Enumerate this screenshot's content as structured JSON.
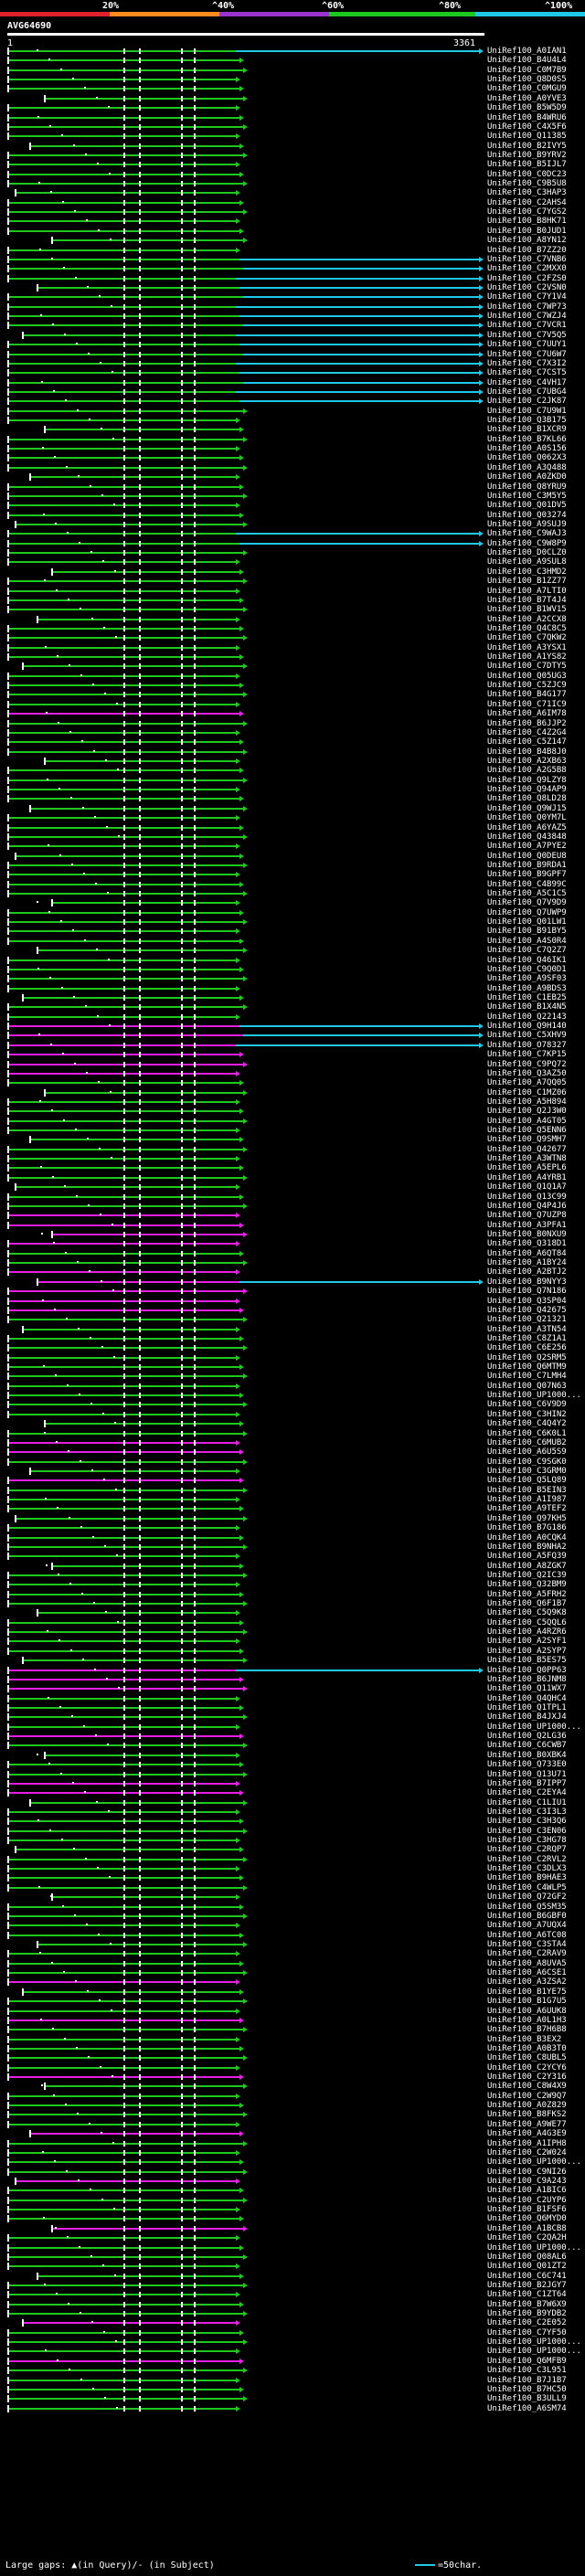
{
  "scale": {
    "labels": [
      "20%",
      "^40%",
      "^60%",
      "^80%",
      "^100%"
    ],
    "colors": [
      "#e0202a",
      "#ff8c1e",
      "#9a32cd",
      "#1ec81e",
      "#1ec8e6"
    ]
  },
  "query": {
    "name": "AVG64690",
    "start": "1",
    "end": "3361"
  },
  "hits": [
    "UniRef100_A0IAN1",
    "UniRef100_B4U4L4",
    "UniRef100_C0M7B9",
    "UniRef100_Q8D0S5",
    "UniRef100_C0MGU9",
    "UniRef100_A0YVE3",
    "UniRef100_B5W5D9",
    "UniRef100_B4WRU6",
    "UniRef100_C4X5F6",
    "UniRef100_Q11385",
    "UniRef100_B2IVY5",
    "UniRef100_B9YRV2",
    "UniRef100_B5IJL7",
    "UniRef100_C0DC23",
    "UniRef100_C9B5U8",
    "UniRef100_C3HAP3",
    "UniRef100_C2AHS4",
    "UniRef100_C7YGS2",
    "UniRef100_B8HK71",
    "UniRef100_B0JUD1",
    "UniRef100_A8YN12",
    "UniRef100_B7ZZ20",
    "UniRef100_C7VNB6",
    "UniRef100_C2MXX0",
    "UniRef100_C2FZS0",
    "UniRef100_C2VSN0",
    "UniRef100_C7Y1V4",
    "UniRef100_C7WP73",
    "UniRef100_C7WZJ4",
    "UniRef100_C7VCR1",
    "UniRef100_C7V5Q5",
    "UniRef100_C7UUY1",
    "UniRef100_C7U6W7",
    "UniRef100_C7X3I2",
    "UniRef100_C7CST5",
    "UniRef100_C4VH17",
    "UniRef100_C7UBG4",
    "UniRef100_C2JK87",
    "UniRef100_C7U9W1",
    "UniRef100_Q3B175",
    "UniRef100_B1XCR9",
    "UniRef100_B7KL66",
    "UniRef100_A0S156",
    "UniRef100_Q062X3",
    "UniRef100_A3Q488",
    "UniRef100_A0ZKD0",
    "UniRef100_Q8YRU9",
    "UniRef100_C3M5Y5",
    "UniRef100_Q01DV5",
    "UniRef100_Q03274",
    "UniRef100_A9SUJ9",
    "UniRef100_C9WAJ3",
    "UniRef100_C9W8P9",
    "UniRef100_D0CLZ0",
    "UniRef100_A9SUL8",
    "UniRef100_C3HMD2",
    "UniRef100_B1ZZ77",
    "UniRef100_A7LTI0",
    "UniRef100_B7T4J4",
    "UniRef100_B1WV15",
    "UniRef100_A2CCX8",
    "UniRef100_Q4C8C5",
    "UniRef100_C7QKW2",
    "UniRef100_A3YSX1",
    "UniRef100_A1YS82",
    "UniRef100_C7DTY5",
    "UniRef100_Q05UG3",
    "UniRef100_C5ZJC9",
    "UniRef100_B4G177",
    "UniRef100_C71IC9",
    "UniRef100_A6IM78",
    "UniRef100_B6JJP2",
    "UniRef100_C4Z2G4",
    "UniRef100_C5Z147",
    "UniRef100_B4B8J0",
    "UniRef100_A2XB63",
    "UniRef100_A2G5B8",
    "UniRef100_Q9LZY8",
    "UniRef100_Q94AP9",
    "UniRef100_Q8LD28",
    "UniRef100_Q9WJ15",
    "UniRef100_Q0YM7L",
    "UniRef100_A6YAZ5",
    "UniRef100_Q43848",
    "UniRef100_A7PYE2",
    "UniRef100_Q0DEU8",
    "UniRef100_B9RDA1",
    "UniRef100_B9GPF7",
    "UniRef100_C4B99C",
    "UniRef100_A5C1C5",
    "UniRef100_Q7V9D9",
    "UniRef100_Q7UWP9",
    "UniRef100_Q01LW1",
    "UniRef100_B91BY5",
    "UniRef100_A4S0R4",
    "UniRef100_C7Q2Z7",
    "UniRef100_Q46IK1",
    "UniRef100_C9Q0D1",
    "UniRef100_A9SF03",
    "UniRef100_A9BDS3",
    "UniRef100_C1EB25",
    "UniRef100_B1X4N5",
    "UniRef100_Q22143",
    "UniRef100_Q9H140",
    "UniRef100_C5XHV9",
    "UniRef100_O78327",
    "UniRef100_C7KP15",
    "UniRef100_C9PQ72",
    "UniRef100_Q3AZ50",
    "UniRef100_A7QQ05",
    "UniRef100_C1MZ06",
    "UniRef100_A5H894",
    "UniRef100_Q2J3W0",
    "UniRef100_A4GT05",
    "UniRef100_Q5ENN6",
    "UniRef100_Q9SMH7",
    "UniRef100_Q42677",
    "UniRef100_A3WTN8",
    "UniRef100_A5EPL6",
    "UniRef100_A4YRB1",
    "UniRef100_Q1Q1A7",
    "UniRef100_Q13C99",
    "UniRef100_Q4P4J6",
    "UniRef100_Q7UZP8",
    "UniRef100_A3PFA1",
    "UniRef100_B0NXU9",
    "UniRef100_Q318D1",
    "UniRef100_A6QT84",
    "UniRef100_A1BY24",
    "UniRef100_A2BTJ2",
    "UniRef100_B9NYY3",
    "UniRef100_Q7N186",
    "UniRef100_Q3SP04",
    "UniRef100_Q42675",
    "UniRef100_Q21321",
    "UniRef100_A3TN54",
    "UniRef100_C8Z1A1",
    "UniRef100_C6E256",
    "UniRef100_Q2SRM5",
    "UniRef100_Q6MTM9",
    "UniRef100_C7LMH4",
    "UniRef100_Q07N63",
    "UniRef100_UP1000...",
    "UniRef100_C6V9D9",
    "UniRef100_C3HIN2",
    "UniRef100_C4Q4Y2",
    "UniRef100_C6K0L1",
    "UniRef100_C6MUB2",
    "UniRef100_A6U5S9",
    "UniRef100_C9SGK0",
    "UniRef100_C3GRM0",
    "UniRef100_Q5LQ89",
    "UniRef100_B5EIN3",
    "UniRef100_A1I987",
    "UniRef100_A9TEF2",
    "UniRef100_Q97KH5",
    "UniRef100_B7G186",
    "UniRef100_A0CQK4",
    "UniRef100_B9NHA2",
    "UniRef100_A5FQ39",
    "UniRef100_A8ZGK7",
    "UniRef100_Q2IC39",
    "UniRef100_Q32BM9",
    "UniRef100_A5FRH2",
    "UniRef100_Q6F1B7",
    "UniRef100_C5Q9K8",
    "UniRef100_C5QQL6",
    "UniRef100_A4RZR6",
    "UniRef100_A2SYF1",
    "UniRef100_A2SYP7",
    "UniRef100_B5ES75",
    "UniRef100_Q0PP63",
    "UniRef100_B6JNM8",
    "UniRef100_Q11WX7",
    "UniRef100_Q4QHC4",
    "UniRef100_Q1TPL1",
    "UniRef100_B4JXJ4",
    "UniRef100_UP1000...",
    "UniRef100_Q2LG36",
    "UniRef100_C6CWB7",
    "UniRef100_B0XBK4",
    "UniRef100_Q733E0",
    "UniRef100_Q13U71",
    "UniRef100_B7IPP7",
    "UniRef100_C2EYA4",
    "UniRef100_C1LIU1",
    "UniRef100_C3I3L3",
    "UniRef100_C3H3Q6",
    "UniRef100_C3EN06",
    "UniRef100_C3HG78",
    "UniRef100_C2RQP7",
    "UniRef100_C2RVL2",
    "UniRef100_C3DLX3",
    "UniRef100_B9HAE3",
    "UniRef100_C4WLP5",
    "UniRef100_Q72GF2",
    "UniRef100_Q5SM35",
    "UniRef100_B6GBF0",
    "UniRef100_A7UQX4",
    "UniRef100_A6TC08",
    "UniRef100_C3STA4",
    "UniRef100_C2RAV9",
    "UniRef100_A8UVA5",
    "UniRef100_A6CSE1",
    "UniRef100_A3ZSA2",
    "UniRef100_B1YE75",
    "UniRef100_B1G7U5",
    "UniRef100_A6UUK8",
    "UniRef100_A0L1H3",
    "UniRef100_B7H6B8",
    "UniRef100_B3EX2",
    "UniRef100_A0B3T0",
    "UniRef100_C8UBL5",
    "UniRef100_C2YCY6",
    "UniRef100_C2Y316",
    "UniRef100_C8W4X9",
    "UniRef100_C2W9Q7",
    "UniRef100_A0Z829",
    "UniRef100_B8FKS2",
    "UniRef100_A9WE77",
    "UniRef100_A4G3E9",
    "UniRef100_A1IPH8",
    "UniRef100_C2W024",
    "UniRef100_UP1000...",
    "UniRef100_C9NI26",
    "UniRef100_C9A243",
    "UniRef100_A1BIC6",
    "UniRef100_C2UYP6",
    "UniRef100_B1FSF6",
    "UniRef100_Q6MYD0",
    "UniRef100_A1BCB8",
    "UniRef100_C2QA2H",
    "UniRef100_UP1000...",
    "UniRef100_Q08AL6",
    "UniRef100_Q01ZT2",
    "UniRef100_C6C741",
    "UniRef100_B2JGY7",
    "UniRef100_C1ZT64",
    "UniRef100_B7W6X9",
    "UniRef100_B9YDB2",
    "UniRef100_C2E052",
    "UniRef100_C7YF50",
    "UniRef100_UP1000...",
    "UniRef100_UP1000...",
    "UniRef100_Q6MFB9",
    "UniRef100_C3L951",
    "UniRef100_B7J1B7",
    "UniRef100_B7HC50",
    "UniRef100_B3ULL9",
    "UniRef100_A6SM74"
  ],
  "footer": {
    "gaps_prefix": "Large gaps:",
    "gap_query": "(in Query)",
    "gap_subject": "/- (in Subject)",
    "legend_label": "=50char."
  }
}
